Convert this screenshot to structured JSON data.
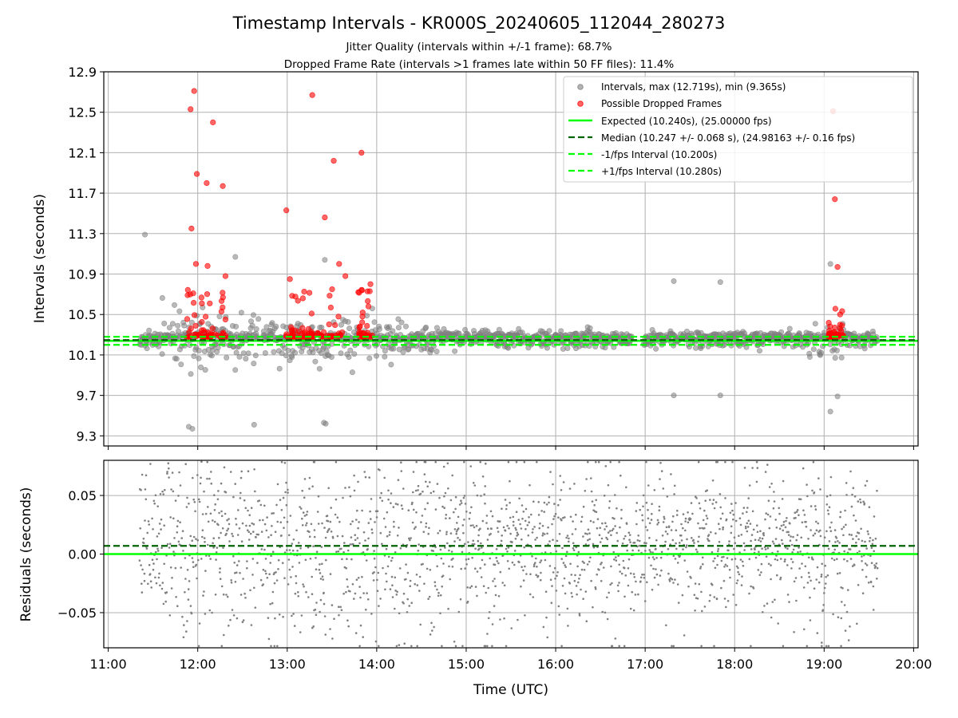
{
  "chart_data": [
    {
      "type": "scatter",
      "title": "Timestamp Intervals - KR000S_20240605_112044_280273",
      "subtitle_lines": [
        "Jitter Quality (intervals within +/-1 frame): 68.7%",
        "Dropped Frame Rate (intervals >1 frames late within 50 FF files): 11.4%"
      ],
      "ylabel": "Intervals (seconds)",
      "xlim_hours": [
        10.95,
        20.05
      ],
      "ylim": [
        9.2,
        12.9
      ],
      "yticks": [
        9.3,
        9.7,
        10.1,
        10.5,
        10.9,
        11.3,
        11.7,
        12.1,
        12.5,
        12.9
      ],
      "ytick_labels": [
        "9.3",
        "9.7",
        "10.1",
        "10.5",
        "10.9",
        "11.3",
        "11.7",
        "12.1",
        "12.5",
        "12.9"
      ],
      "grid": true,
      "legend_placement": "top-right",
      "legend": [
        "Intervals, max (12.719s), min (9.365s)",
        "Possible Dropped Frames",
        "Expected (10.240s), (25.00000 fps)",
        "Median (10.247 +/- 0.068 s), (24.98163 +/- 0.16 fps)",
        "-1/fps Interval (10.200s)",
        "+1/fps Interval (10.280s)"
      ],
      "reference_lines": {
        "expected": 10.24,
        "median": 10.247,
        "minus_one_frame": 10.2,
        "plus_one_frame": 10.28
      },
      "colors": {
        "intervals": "#808080",
        "dropped": "#ff0000",
        "expected": "#00ff00",
        "median": "#006400",
        "fps_bounds": "#00ff00"
      },
      "time_range_hours": [
        11.35,
        19.6
      ],
      "intervals_max": 12.719,
      "intervals_min": 9.365,
      "dropped_outliers": [
        {
          "x": 11.92,
          "y": 12.53
        },
        {
          "x": 11.96,
          "y": 12.71
        },
        {
          "x": 12.17,
          "y": 12.4
        },
        {
          "x": 11.99,
          "y": 11.89
        },
        {
          "x": 12.1,
          "y": 11.8
        },
        {
          "x": 12.28,
          "y": 11.77
        },
        {
          "x": 11.93,
          "y": 11.35
        },
        {
          "x": 11.98,
          "y": 11.0
        },
        {
          "x": 12.11,
          "y": 10.98
        },
        {
          "x": 12.31,
          "y": 10.88
        },
        {
          "x": 13.28,
          "y": 12.67
        },
        {
          "x": 13.83,
          "y": 12.1
        },
        {
          "x": 13.52,
          "y": 12.02
        },
        {
          "x": 12.99,
          "y": 11.53
        },
        {
          "x": 13.42,
          "y": 11.46
        },
        {
          "x": 13.58,
          "y": 11.0
        },
        {
          "x": 13.65,
          "y": 10.88
        },
        {
          "x": 13.03,
          "y": 10.85
        },
        {
          "x": 13.93,
          "y": 10.8
        },
        {
          "x": 19.1,
          "y": 12.51
        },
        {
          "x": 19.12,
          "y": 11.64
        },
        {
          "x": 19.15,
          "y": 10.97
        }
      ],
      "intervals_outliers": [
        {
          "x": 11.41,
          "y": 11.29
        },
        {
          "x": 12.42,
          "y": 11.07
        },
        {
          "x": 13.42,
          "y": 11.04
        },
        {
          "x": 17.32,
          "y": 10.83
        },
        {
          "x": 17.84,
          "y": 10.82
        },
        {
          "x": 19.07,
          "y": 11.0
        },
        {
          "x": 11.9,
          "y": 9.39
        },
        {
          "x": 11.94,
          "y": 9.37
        },
        {
          "x": 13.41,
          "y": 9.43
        },
        {
          "x": 13.43,
          "y": 9.42
        },
        {
          "x": 12.63,
          "y": 9.41
        },
        {
          "x": 17.32,
          "y": 9.7
        },
        {
          "x": 17.84,
          "y": 9.7
        },
        {
          "x": 19.07,
          "y": 9.54
        },
        {
          "x": 19.15,
          "y": 9.69
        }
      ]
    },
    {
      "type": "scatter",
      "xlabel": "Time (UTC)",
      "ylabel": "Residuals (seconds)",
      "xlim_hours": [
        10.95,
        20.05
      ],
      "ylim": [
        -0.08,
        0.08
      ],
      "yticks": [
        -0.05,
        0.0,
        0.05
      ],
      "ytick_labels": [
        "−0.05",
        "0.00",
        "0.05"
      ],
      "xticks_hours": [
        11,
        12,
        13,
        14,
        15,
        16,
        17,
        18,
        19,
        20
      ],
      "xtick_labels": [
        "11:00",
        "12:00",
        "13:00",
        "14:00",
        "15:00",
        "16:00",
        "17:00",
        "18:00",
        "19:00",
        "20:00"
      ],
      "grid": true,
      "reference_lines": {
        "expected": 0.0,
        "median": 0.007
      },
      "colors": {
        "residuals": "#808080",
        "expected": "#00ff00",
        "median": "#006400"
      }
    }
  ]
}
